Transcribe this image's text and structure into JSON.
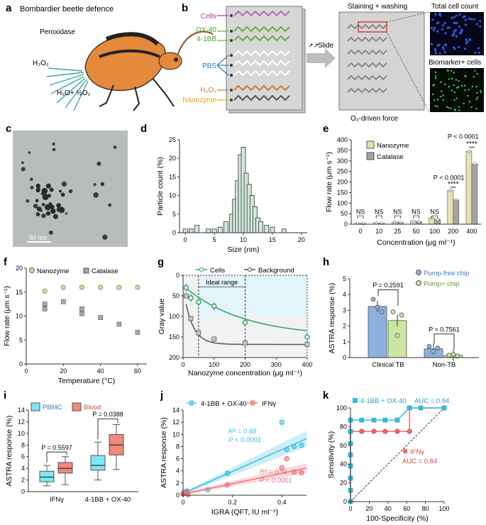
{
  "figure": {
    "panel_letters": [
      "a",
      "b",
      "c",
      "d",
      "e",
      "f",
      "g",
      "h",
      "i",
      "j",
      "k"
    ],
    "panel_a": {
      "title": "Bombardier beetle defence",
      "peroxidase": "Peroxidase",
      "h2o2": "H₂O₂",
      "products": "H₂O+ ½O₂"
    },
    "panel_b": {
      "labels": [
        "Cells",
        "OX-40",
        "4-1BB",
        "PBS",
        "H₂O₂",
        "Nanozyme"
      ],
      "slide": "Slide",
      "staining": "Staining + washing",
      "force": "O₂-driven force",
      "total": "Total cell count",
      "biomarker": "Biomarker+ cells"
    },
    "panel_c": {
      "scale_bar": "50 nm"
    }
  },
  "chart_data": [
    {
      "panel": "d",
      "type": "bar",
      "title": "",
      "xlabel": "Size (nm)",
      "ylabel": "Particle count (%)",
      "xlim": [
        -1,
        21
      ],
      "ylim": [
        0,
        25
      ],
      "xticks": [
        0,
        5,
        10,
        15,
        20
      ],
      "yticks": [
        0,
        5,
        10,
        15,
        20,
        25
      ],
      "x": [
        0,
        1,
        2,
        4,
        5,
        6,
        7,
        8,
        8.5,
        9,
        9.5,
        10,
        10.5,
        11,
        11.5,
        12,
        12.5,
        13,
        14,
        15,
        17
      ],
      "values": [
        1,
        1,
        2,
        1,
        1,
        1.5,
        3,
        5,
        9,
        14,
        21,
        23,
        16,
        13,
        10,
        7,
        4,
        3,
        2,
        1.5,
        1
      ]
    },
    {
      "panel": "e",
      "type": "bar",
      "xlabel": "Concentration (μg ml⁻¹)",
      "ylabel": "Flow rate (μm s⁻¹)",
      "ylim": [
        0,
        400
      ],
      "yticks": [
        0,
        50,
        100,
        150,
        200,
        250,
        300,
        350,
        400
      ],
      "categories": [
        "0",
        "10",
        "25",
        "50",
        "100",
        "200",
        "400"
      ],
      "series": [
        {
          "name": "Nanozyme",
          "color": "#e6e2b0",
          "values": [
            4,
            5,
            10,
            14,
            30,
            160,
            345
          ]
        },
        {
          "name": "Catalase",
          "color": "#a3a3a3",
          "values": [
            3,
            4,
            8,
            12,
            22,
            115,
            285
          ]
        }
      ],
      "annotations": [
        "NS",
        "NS",
        "NS",
        "NS",
        "NS",
        "P < 0.0001",
        "****",
        "P < 0.0001",
        "****"
      ]
    },
    {
      "panel": "f",
      "type": "scatter",
      "xlabel": "Temperature (°C)",
      "ylabel": "Flow rate (μm s⁻¹)",
      "xlim": [
        0,
        65
      ],
      "ylim": [
        0,
        20
      ],
      "xticks": [
        0,
        20,
        40,
        60
      ],
      "yticks": [
        0,
        5,
        10,
        15,
        20
      ],
      "series": [
        {
          "name": "Nanozyme",
          "color": "#d6dc8c",
          "x": [
            10,
            20,
            30,
            40,
            50,
            60
          ],
          "values": [
            15.2,
            16,
            16,
            16,
            16,
            16
          ]
        },
        {
          "name": "Catalase",
          "color": "#a8a8a8",
          "x": [
            10,
            10,
            20,
            30,
            30,
            40,
            50,
            60
          ],
          "values": [
            11.5,
            12.5,
            13,
            10.5,
            11.5,
            9.7,
            8.3,
            6.6
          ]
        }
      ]
    },
    {
      "panel": "g",
      "type": "line",
      "xlabel": "Nanozyme concentration (μg ml⁻¹)",
      "ylabel": "Gray value",
      "xlim": [
        0,
        400
      ],
      "ylim_inverted": [
        0,
        200
      ],
      "xticks": [
        0,
        100,
        200,
        300,
        400
      ],
      "yticks": [
        0,
        50,
        100,
        150,
        200
      ],
      "region_label": "Ideal range",
      "region": [
        50,
        200
      ],
      "series": [
        {
          "name": "Cells",
          "color": "#27a560",
          "x": [
            10,
            25,
            50,
            100,
            200,
            400
          ],
          "values": [
            30,
            55,
            65,
            75,
            115,
            150
          ]
        },
        {
          "name": "Background",
          "color": "#555555",
          "x": [
            10,
            25,
            50,
            100,
            200,
            400
          ],
          "values": [
            50,
            105,
            140,
            155,
            165,
            168
          ]
        }
      ]
    },
    {
      "panel": "h",
      "type": "bar",
      "ylabel": "ASTRA response (%)",
      "ylim": [
        0,
        5
      ],
      "yticks": [
        0,
        1,
        2,
        3,
        4,
        5
      ],
      "categories": [
        "Clinical TB",
        "Non-TB"
      ],
      "series": [
        {
          "name": "Pump-free chip",
          "color": "#8db1de",
          "values": [
            3.25,
            0.55
          ]
        },
        {
          "name": "Pump+ chip",
          "color": "#c9e7a3",
          "values": [
            2.35,
            0.15
          ]
        }
      ],
      "annotations": [
        "P = 0.2591",
        "P = 0.7561"
      ]
    },
    {
      "panel": "i",
      "type": "box",
      "ylabel": "ASTRA response (%)",
      "ylim": [
        0,
        14
      ],
      "yticks": [
        0,
        2,
        4,
        6,
        8,
        10,
        12,
        14
      ],
      "categories": [
        "IFNγ",
        "4-1BB + OX-40"
      ],
      "series": [
        {
          "name": "PBMC",
          "color": "#7ee7f5",
          "boxes": [
            [
              1,
              1.7,
              2.5,
              3.5,
              4.5
            ],
            [
              2,
              3.7,
              4.5,
              6.2,
              8.5
            ]
          ]
        },
        {
          "name": "Blood",
          "color": "#f08a7a",
          "boxes": [
            [
              1.2,
              3.2,
              4,
              5,
              6
            ],
            [
              3.8,
              6.3,
              8,
              9.8,
              11.5
            ]
          ]
        }
      ],
      "annotations": [
        "P = 0.5597",
        "P = 0.0388"
      ]
    },
    {
      "panel": "j",
      "type": "scatter",
      "xlabel": "IGRA (QFT, IU ml⁻¹)",
      "ylabel": "ASTRA response (%)",
      "xlim": [
        0,
        0.5
      ],
      "ylim": [
        0,
        14
      ],
      "xticks": [
        0,
        0.2,
        0.4
      ],
      "yticks": [
        0,
        2,
        4,
        6,
        8,
        10,
        12,
        14
      ],
      "series": [
        {
          "name": "4-1BB + OX-40",
          "color": "#35bde0",
          "r2": "R² = 0.88",
          "p": "P < 0.0001",
          "x": [
            0,
            0.005,
            0.01,
            0.015,
            0.02,
            0.1,
            0.18,
            0.4,
            0.42,
            0.45,
            0.48
          ],
          "values": [
            0.3,
            0.5,
            0.4,
            0.7,
            0.2,
            0.9,
            3.6,
            12,
            7.5,
            8,
            8.2
          ]
        },
        {
          "name": "IFNγ",
          "color": "#ee6b70",
          "r2": "R² = 0.91",
          "p": "P < 0.0001",
          "x": [
            0,
            0.005,
            0.01,
            0.015,
            0.02,
            0.18,
            0.4,
            0.42,
            0.45,
            0.48
          ],
          "values": [
            0.2,
            0.4,
            0.3,
            0.5,
            0.1,
            1.7,
            4.5,
            6,
            3.8,
            3.7
          ]
        }
      ]
    },
    {
      "panel": "k",
      "type": "line",
      "xlabel": "100-Specificity (%)",
      "ylabel": "Sensitivity (%)",
      "xlim": [
        0,
        100
      ],
      "ylim": [
        0,
        100
      ],
      "xticks": [
        0,
        20,
        40,
        60,
        80,
        100
      ],
      "yticks": [
        0,
        20,
        40,
        60,
        80,
        100
      ],
      "series": [
        {
          "name": "4-1BB + OX-40",
          "auc": "AUC = 0.94",
          "color": "#35bde0",
          "x": [
            0,
            0,
            0,
            0,
            0,
            0,
            0,
            0,
            12,
            25,
            37,
            50,
            63,
            75,
            100
          ],
          "values": [
            0,
            12,
            25,
            38,
            50,
            62,
            75,
            87,
            87,
            87,
            87,
            87,
            100,
            100,
            100
          ]
        },
        {
          "name": "IFNγ",
          "auc": "AUC = 0.84",
          "color": "#ee6b70",
          "x": [
            0,
            0,
            0,
            0,
            0,
            0,
            0,
            12,
            25,
            37,
            50,
            63,
            63,
            100
          ],
          "values": [
            0,
            12,
            25,
            38,
            50,
            62,
            75,
            75,
            75,
            75,
            75,
            75,
            100,
            100
          ]
        }
      ]
    }
  ]
}
